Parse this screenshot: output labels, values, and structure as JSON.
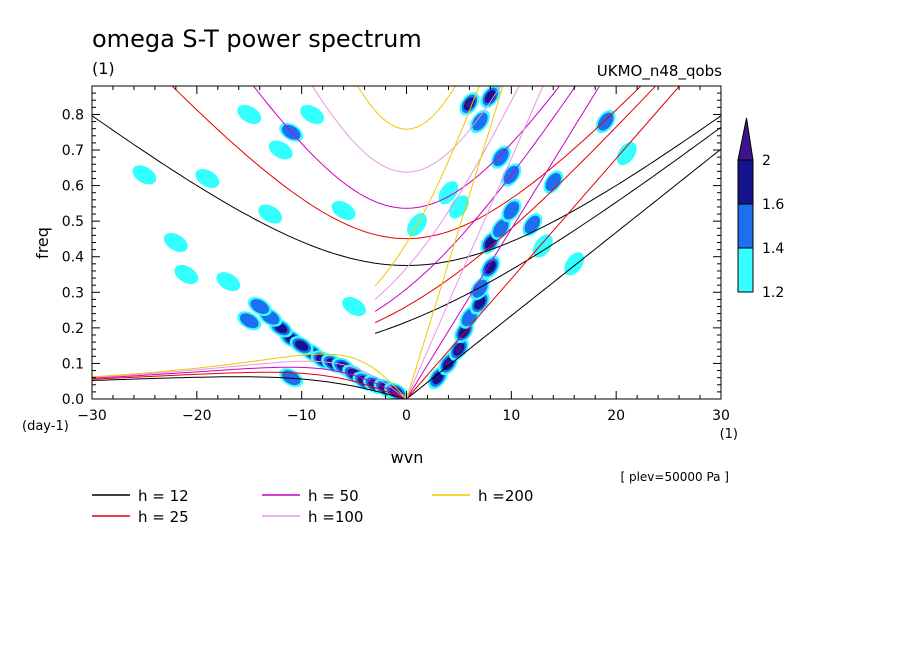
{
  "chart_data": {
    "type": "heatmap",
    "title": "omega S-T power spectrum",
    "subtitle_left": "(1)",
    "subtitle_right": "UKMO_n48_qobs",
    "xlabel": "wvn",
    "ylabel": "freq",
    "x_unit_label": "(1)",
    "y_unit_label": "(day-1)",
    "annotation": "[ plev=50000 Pa ]",
    "xlim": [
      -30,
      30
    ],
    "ylim": [
      0,
      0.88
    ],
    "x_ticks": [
      -30,
      -20,
      -10,
      0,
      10,
      20,
      30
    ],
    "x_tick_labels": [
      "−30",
      "−20",
      "−10",
      "0",
      "10",
      "20",
      "30"
    ],
    "y_ticks": [
      0,
      0.1,
      0.2,
      0.3,
      0.4,
      0.5,
      0.6,
      0.7,
      0.8
    ],
    "y_tick_labels": [
      "0.0",
      "0.1",
      "0.2",
      "0.3",
      "0.4",
      "0.5",
      "0.6",
      "0.7",
      "0.8"
    ],
    "colorbar": {
      "levels": [
        1.2,
        1.4,
        1.6,
        2
      ],
      "level_labels": [
        "1.2",
        "1.4",
        "1.6",
        "2"
      ],
      "colors": [
        "#33ffff",
        "#1e6ef0",
        "#14148c",
        "#3c148c"
      ]
    },
    "dispersion_curves": [
      {
        "name": "h = 12",
        "equivalent_depth": 12,
        "color": "#000000"
      },
      {
        "name": "h = 25",
        "equivalent_depth": 25,
        "color": "#e60000"
      },
      {
        "name": "h = 50",
        "equivalent_depth": 50,
        "color": "#c800c8"
      },
      {
        "name": "h =100",
        "equivalent_depth": 100,
        "color": "#e696e6"
      },
      {
        "name": "h =200",
        "equivalent_depth": 200,
        "color": "#f0c800"
      }
    ],
    "contour_blobs": [
      {
        "x": -9,
        "y": 0.13,
        "l": 3
      },
      {
        "x": -8,
        "y": 0.11,
        "l": 3
      },
      {
        "x": -7,
        "y": 0.1,
        "l": 3
      },
      {
        "x": -6,
        "y": 0.09,
        "l": 3
      },
      {
        "x": -5,
        "y": 0.07,
        "l": 3
      },
      {
        "x": -4,
        "y": 0.05,
        "l": 3
      },
      {
        "x": -3,
        "y": 0.04,
        "l": 2
      },
      {
        "x": -2,
        "y": 0.03,
        "l": 2
      },
      {
        "x": -1,
        "y": 0.02,
        "l": 2
      },
      {
        "x": -11,
        "y": 0.17,
        "l": 2
      },
      {
        "x": -12,
        "y": 0.2,
        "l": 2
      },
      {
        "x": -13,
        "y": 0.23,
        "l": 1
      },
      {
        "x": -14,
        "y": 0.26,
        "l": 1
      },
      {
        "x": -15,
        "y": 0.22,
        "l": 1
      },
      {
        "x": -11,
        "y": 0.06,
        "l": 1
      },
      {
        "x": -10,
        "y": 0.15,
        "l": 2
      },
      {
        "x": -17,
        "y": 0.33,
        "l": 0
      },
      {
        "x": -21,
        "y": 0.35,
        "l": 0
      },
      {
        "x": 3,
        "y": 0.06,
        "l": 2
      },
      {
        "x": 4,
        "y": 0.1,
        "l": 3
      },
      {
        "x": 5,
        "y": 0.14,
        "l": 3
      },
      {
        "x": 5.5,
        "y": 0.19,
        "l": 2
      },
      {
        "x": 6,
        "y": 0.23,
        "l": 1
      },
      {
        "x": 7,
        "y": 0.27,
        "l": 2
      },
      {
        "x": 7,
        "y": 0.31,
        "l": 1
      },
      {
        "x": 8,
        "y": 0.37,
        "l": 2
      },
      {
        "x": 8,
        "y": 0.44,
        "l": 2
      },
      {
        "x": 9,
        "y": 0.48,
        "l": 1
      },
      {
        "x": 10,
        "y": 0.53,
        "l": 1
      },
      {
        "x": 6,
        "y": 0.83,
        "l": 3
      },
      {
        "x": 8,
        "y": 0.85,
        "l": 2
      },
      {
        "x": 7,
        "y": 0.78,
        "l": 1
      },
      {
        "x": 9,
        "y": 0.68,
        "l": 1
      },
      {
        "x": 12,
        "y": 0.49,
        "l": 1
      },
      {
        "x": 13,
        "y": 0.43,
        "l": 0
      },
      {
        "x": 14,
        "y": 0.61,
        "l": 1
      },
      {
        "x": -11,
        "y": 0.75,
        "l": 1
      },
      {
        "x": -12,
        "y": 0.7,
        "l": 0
      },
      {
        "x": -15,
        "y": 0.8,
        "l": 0
      },
      {
        "x": -9,
        "y": 0.8,
        "l": 0
      },
      {
        "x": -13,
        "y": 0.52,
        "l": 0
      },
      {
        "x": -6,
        "y": 0.53,
        "l": 0
      },
      {
        "x": -19,
        "y": 0.62,
        "l": 0
      },
      {
        "x": -22,
        "y": 0.44,
        "l": 0
      },
      {
        "x": -5,
        "y": 0.26,
        "l": 0
      },
      {
        "x": 4,
        "y": 0.58,
        "l": 0
      },
      {
        "x": 1,
        "y": 0.49,
        "l": 0
      },
      {
        "x": 16,
        "y": 0.38,
        "l": 0
      },
      {
        "x": 21,
        "y": 0.69,
        "l": 0
      },
      {
        "x": 19,
        "y": 0.78,
        "l": 1
      },
      {
        "x": -25,
        "y": 0.63,
        "l": 0
      },
      {
        "x": 5,
        "y": 0.54,
        "l": 0
      },
      {
        "x": 10,
        "y": 0.63,
        "l": 1
      }
    ]
  }
}
